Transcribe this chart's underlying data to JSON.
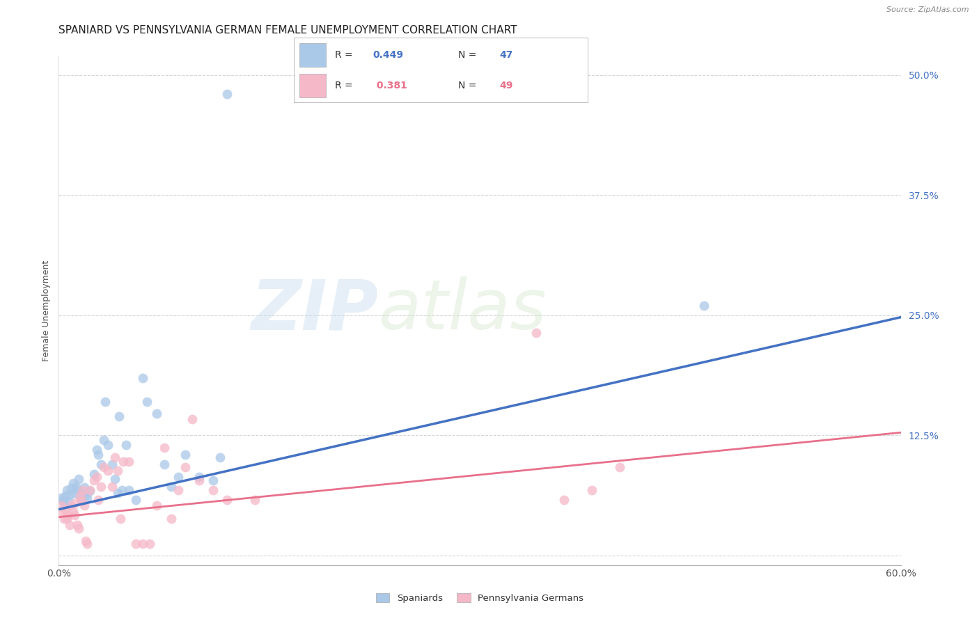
{
  "title": "SPANIARD VS PENNSYLVANIA GERMAN FEMALE UNEMPLOYMENT CORRELATION CHART",
  "source": "Source: ZipAtlas.com",
  "ylabel": "Female Unemployment",
  "xlim": [
    0.0,
    0.6
  ],
  "ylim": [
    -0.01,
    0.52
  ],
  "yticks": [
    0.0,
    0.125,
    0.25,
    0.375,
    0.5
  ],
  "ytick_labels": [
    "",
    "12.5%",
    "25.0%",
    "37.5%",
    "50.0%"
  ],
  "xtick_positions": [
    0.0,
    0.1,
    0.2,
    0.3,
    0.4,
    0.5,
    0.6
  ],
  "xtick_labels": [
    "0.0%",
    "",
    "",
    "",
    "",
    "",
    "60.0%"
  ],
  "background_color": "#ffffff",
  "grid_color": "#cccccc",
  "spaniard_color": "#aac8e8",
  "penn_german_color": "#f5b8c8",
  "spaniard_line_color": "#4472c4",
  "penn_german_line_color": "#e8708a",
  "legend_label1": "Spaniards",
  "legend_label2": "Pennsylvania Germans",
  "spaniard_r": "0.449",
  "spaniard_n": "47",
  "penn_german_r": "0.381",
  "penn_german_n": "49",
  "watermark_zip": "ZIP",
  "watermark_atlas": "atlas",
  "title_fontsize": 11,
  "axis_label_fontsize": 9,
  "tick_fontsize": 10,
  "spaniard_data": [
    [
      0.002,
      0.06
    ],
    [
      0.003,
      0.058
    ],
    [
      0.004,
      0.055
    ],
    [
      0.005,
      0.062
    ],
    [
      0.006,
      0.068
    ],
    [
      0.007,
      0.057
    ],
    [
      0.008,
      0.063
    ],
    [
      0.009,
      0.07
    ],
    [
      0.01,
      0.075
    ],
    [
      0.011,
      0.065
    ],
    [
      0.012,
      0.072
    ],
    [
      0.013,
      0.068
    ],
    [
      0.014,
      0.08
    ],
    [
      0.015,
      0.062
    ],
    [
      0.016,
      0.058
    ],
    [
      0.017,
      0.065
    ],
    [
      0.018,
      0.071
    ],
    [
      0.019,
      0.063
    ],
    [
      0.02,
      0.06
    ],
    [
      0.022,
      0.067
    ],
    [
      0.025,
      0.085
    ],
    [
      0.027,
      0.11
    ],
    [
      0.028,
      0.105
    ],
    [
      0.03,
      0.095
    ],
    [
      0.032,
      0.12
    ],
    [
      0.033,
      0.16
    ],
    [
      0.035,
      0.115
    ],
    [
      0.038,
      0.095
    ],
    [
      0.04,
      0.08
    ],
    [
      0.042,
      0.065
    ],
    [
      0.043,
      0.145
    ],
    [
      0.045,
      0.068
    ],
    [
      0.048,
      0.115
    ],
    [
      0.05,
      0.068
    ],
    [
      0.055,
      0.058
    ],
    [
      0.06,
      0.185
    ],
    [
      0.063,
      0.16
    ],
    [
      0.07,
      0.148
    ],
    [
      0.075,
      0.095
    ],
    [
      0.08,
      0.072
    ],
    [
      0.085,
      0.082
    ],
    [
      0.09,
      0.105
    ],
    [
      0.1,
      0.082
    ],
    [
      0.11,
      0.078
    ],
    [
      0.115,
      0.102
    ],
    [
      0.12,
      0.48
    ],
    [
      0.46,
      0.26
    ]
  ],
  "penn_german_data": [
    [
      0.002,
      0.052
    ],
    [
      0.003,
      0.045
    ],
    [
      0.004,
      0.038
    ],
    [
      0.005,
      0.048
    ],
    [
      0.006,
      0.038
    ],
    [
      0.007,
      0.042
    ],
    [
      0.008,
      0.032
    ],
    [
      0.009,
      0.052
    ],
    [
      0.01,
      0.046
    ],
    [
      0.011,
      0.042
    ],
    [
      0.012,
      0.055
    ],
    [
      0.013,
      0.032
    ],
    [
      0.014,
      0.028
    ],
    [
      0.015,
      0.062
    ],
    [
      0.016,
      0.057
    ],
    [
      0.017,
      0.068
    ],
    [
      0.018,
      0.052
    ],
    [
      0.019,
      0.015
    ],
    [
      0.02,
      0.012
    ],
    [
      0.022,
      0.068
    ],
    [
      0.025,
      0.078
    ],
    [
      0.027,
      0.082
    ],
    [
      0.028,
      0.058
    ],
    [
      0.03,
      0.072
    ],
    [
      0.032,
      0.092
    ],
    [
      0.035,
      0.088
    ],
    [
      0.038,
      0.072
    ],
    [
      0.04,
      0.102
    ],
    [
      0.042,
      0.088
    ],
    [
      0.044,
      0.038
    ],
    [
      0.046,
      0.098
    ],
    [
      0.05,
      0.098
    ],
    [
      0.055,
      0.012
    ],
    [
      0.06,
      0.012
    ],
    [
      0.065,
      0.012
    ],
    [
      0.07,
      0.052
    ],
    [
      0.075,
      0.112
    ],
    [
      0.08,
      0.038
    ],
    [
      0.085,
      0.068
    ],
    [
      0.09,
      0.092
    ],
    [
      0.095,
      0.142
    ],
    [
      0.1,
      0.078
    ],
    [
      0.11,
      0.068
    ],
    [
      0.12,
      0.058
    ],
    [
      0.14,
      0.058
    ],
    [
      0.34,
      0.232
    ],
    [
      0.36,
      0.058
    ],
    [
      0.38,
      0.068
    ],
    [
      0.4,
      0.092
    ]
  ],
  "sp_line_x": [
    0.0,
    0.6
  ],
  "sp_line_y": [
    0.048,
    0.248
  ],
  "pg_line_x": [
    0.0,
    0.6
  ],
  "pg_line_y": [
    0.04,
    0.128
  ]
}
